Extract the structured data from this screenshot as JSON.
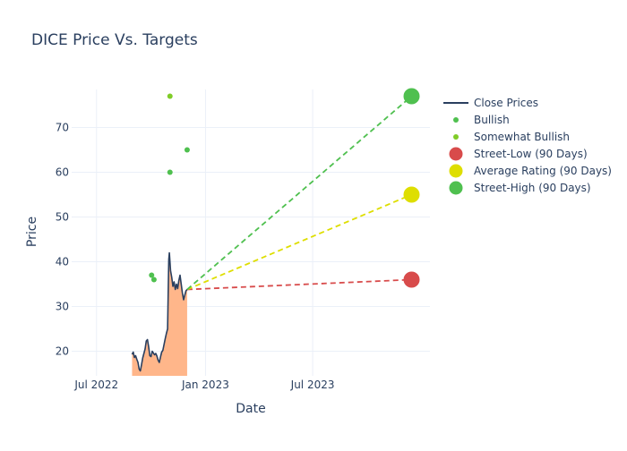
{
  "chart_data": {
    "type": "line",
    "title": "DICE Price Vs. Targets",
    "xlabel": "Date",
    "ylabel": "Price",
    "x_range": [
      "2022-05-20",
      "2024-01-15"
    ],
    "ylim": [
      14.5,
      78.5
    ],
    "y_ticks": [
      20,
      30,
      40,
      50,
      60,
      70
    ],
    "x_ticks": [
      {
        "date": "2022-07-01",
        "label": "Jul 2022"
      },
      {
        "date": "2023-01-01",
        "label": "Jan 2023"
      },
      {
        "date": "2023-07-01",
        "label": "Jul 2023"
      }
    ],
    "grid": true,
    "legend_position": "right",
    "colors": {
      "close": "#2a3f5f",
      "fill": "#ffb68a",
      "bullish": "#4fc04f",
      "somewhat_bullish": "#80cc28",
      "street_low": "#d84b4b",
      "average": "#dede00",
      "street_high": "#4fc04f",
      "grid": "#ebf0f8",
      "text": "#2a3f5f"
    },
    "close_prices": [
      [
        "2022-08-30",
        19.3
      ],
      [
        "2022-09-01",
        19.8
      ],
      [
        "2022-09-03",
        18.6
      ],
      [
        "2022-09-05",
        19.0
      ],
      [
        "2022-09-07",
        18.2
      ],
      [
        "2022-09-09",
        17.5
      ],
      [
        "2022-09-11",
        16.0
      ],
      [
        "2022-09-13",
        15.6
      ],
      [
        "2022-09-15",
        17.0
      ],
      [
        "2022-09-17",
        18.5
      ],
      [
        "2022-09-19",
        19.5
      ],
      [
        "2022-09-21",
        20.5
      ],
      [
        "2022-09-23",
        22.3
      ],
      [
        "2022-09-25",
        22.6
      ],
      [
        "2022-09-27",
        21.0
      ],
      [
        "2022-09-29",
        19.0
      ],
      [
        "2022-10-01",
        18.8
      ],
      [
        "2022-10-03",
        20.0
      ],
      [
        "2022-10-05",
        19.6
      ],
      [
        "2022-10-07",
        19.2
      ],
      [
        "2022-10-09",
        19.5
      ],
      [
        "2022-10-11",
        18.9
      ],
      [
        "2022-10-13",
        18.0
      ],
      [
        "2022-10-15",
        17.5
      ],
      [
        "2022-10-17",
        18.7
      ],
      [
        "2022-10-19",
        19.8
      ],
      [
        "2022-10-21",
        20.2
      ],
      [
        "2022-10-23",
        21.5
      ],
      [
        "2022-10-25",
        22.8
      ],
      [
        "2022-10-27",
        24.0
      ],
      [
        "2022-10-29",
        25.0
      ],
      [
        "2022-10-30",
        33.0
      ],
      [
        "2022-10-31",
        40.5
      ],
      [
        "2022-11-01",
        42.0
      ],
      [
        "2022-11-03",
        38.0
      ],
      [
        "2022-11-05",
        36.5
      ],
      [
        "2022-11-07",
        34.5
      ],
      [
        "2022-11-09",
        35.5
      ],
      [
        "2022-11-11",
        33.8
      ],
      [
        "2022-11-13",
        35.0
      ],
      [
        "2022-11-15",
        34.0
      ],
      [
        "2022-11-17",
        35.8
      ],
      [
        "2022-11-19",
        37.0
      ],
      [
        "2022-11-21",
        35.0
      ],
      [
        "2022-11-23",
        33.0
      ],
      [
        "2022-11-25",
        31.5
      ],
      [
        "2022-11-27",
        32.5
      ],
      [
        "2022-11-29",
        33.5
      ],
      [
        "2022-12-01",
        33.8
      ]
    ],
    "series": [
      {
        "name": "Close Prices",
        "style": "line"
      },
      {
        "name": "Bullish",
        "style": "marker",
        "points": [
          [
            "2022-10-02",
            37
          ],
          [
            "2022-10-06",
            36
          ],
          [
            "2022-11-02",
            60
          ],
          [
            "2022-12-01",
            65
          ]
        ]
      },
      {
        "name": "Somewhat Bullish",
        "style": "marker",
        "points": [
          [
            "2022-11-02",
            77
          ]
        ]
      },
      {
        "name": "Street-Low (90 Days)",
        "style": "target",
        "start": [
          "2022-12-01",
          33.8
        ],
        "end": [
          "2023-12-15",
          36
        ]
      },
      {
        "name": "Average Rating (90 Days)",
        "style": "target",
        "start": [
          "2022-12-01",
          33.8
        ],
        "end": [
          "2023-12-15",
          55
        ]
      },
      {
        "name": "Street-High (90 Days)",
        "style": "target",
        "start": [
          "2022-12-01",
          33.8
        ],
        "end": [
          "2023-12-15",
          77
        ]
      }
    ]
  }
}
